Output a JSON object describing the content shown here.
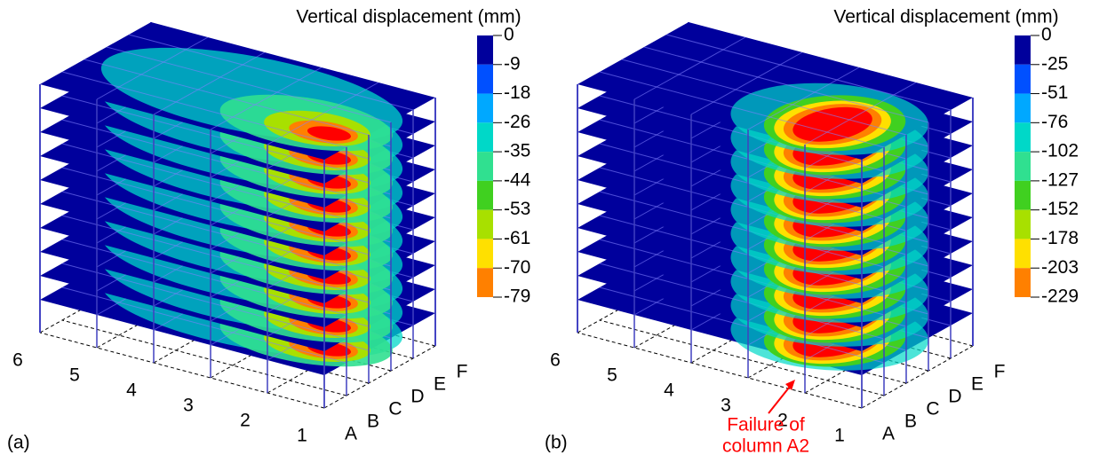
{
  "panels": [
    {
      "label": "(a)",
      "colorbar": {
        "title": "Vertical displacement (mm)",
        "ticks": [
          0,
          -9,
          -18,
          -26,
          -35,
          -44,
          -53,
          -61,
          -70,
          -79
        ]
      },
      "rows": [
        "1",
        "2",
        "3",
        "4",
        "5",
        "6"
      ],
      "columns": [
        "A",
        "B",
        "C",
        "D",
        "E",
        "F"
      ]
    },
    {
      "label": "(b)",
      "colorbar": {
        "title": "Vertical displacement (mm)",
        "ticks": [
          0,
          -25,
          -51,
          -76,
          -102,
          -127,
          -152,
          -178,
          -203,
          -229
        ]
      },
      "rows": [
        "1",
        "2",
        "3",
        "4",
        "5",
        "6"
      ],
      "columns": [
        "A",
        "B",
        "C",
        "D",
        "E",
        "F"
      ],
      "annotation": [
        "Failure of",
        "column A2"
      ]
    }
  ],
  "colors": [
    "#00009c",
    "#0050ff",
    "#00a8ff",
    "#00d8c8",
    "#30e090",
    "#40d020",
    "#a8e000",
    "#ffe000",
    "#ff8000",
    "#ff0000"
  ]
}
